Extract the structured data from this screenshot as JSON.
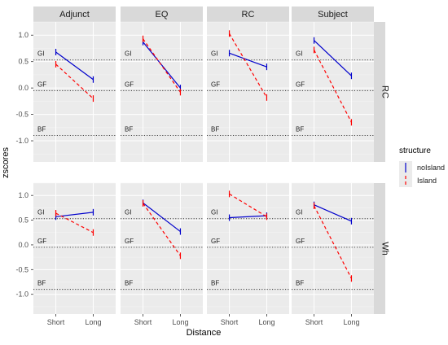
{
  "chart_data": {
    "type": "line",
    "xlabel": "Distance",
    "ylabel": "zscores",
    "categories": [
      "Short",
      "Long"
    ],
    "ylim": [
      -1.4,
      1.25
    ],
    "yticks": [
      -1.0,
      -0.5,
      0.0,
      0.5,
      1.0
    ],
    "ytick_labels": [
      "-1.0",
      "-0.5",
      "0.0",
      "0.5",
      "1.0"
    ],
    "grid": true,
    "facet_columns": [
      "Adjunct",
      "EQ",
      "RC",
      "Subject"
    ],
    "facet_rows": [
      "RC",
      "Wh"
    ],
    "reference_lines": [
      {
        "label": "GI",
        "value": 0.53
      },
      {
        "label": "GF",
        "value": -0.05
      },
      {
        "label": "BF",
        "value": -0.9
      }
    ],
    "legend": {
      "title": "structure",
      "position": "right",
      "entries": [
        {
          "label": "noIsland",
          "color": "#0000cc",
          "style": "solid"
        },
        {
          "label": "Island",
          "color": "#ff0000",
          "style": "dashed"
        }
      ]
    },
    "panels": [
      {
        "row": "RC",
        "col": "Adjunct",
        "series": [
          {
            "name": "noIsland",
            "values": [
              0.68,
              0.16
            ]
          },
          {
            "name": "Island",
            "values": [
              0.45,
              -0.2
            ]
          }
        ]
      },
      {
        "row": "RC",
        "col": "EQ",
        "series": [
          {
            "name": "noIsland",
            "values": [
              0.87,
              0.0
            ]
          },
          {
            "name": "Island",
            "values": [
              0.93,
              -0.08
            ]
          }
        ]
      },
      {
        "row": "RC",
        "col": "RC",
        "series": [
          {
            "name": "noIsland",
            "values": [
              0.66,
              0.4
            ]
          },
          {
            "name": "Island",
            "values": [
              1.03,
              -0.18
            ]
          }
        ]
      },
      {
        "row": "RC",
        "col": "Subject",
        "series": [
          {
            "name": "noIsland",
            "values": [
              0.9,
              0.23
            ]
          },
          {
            "name": "Island",
            "values": [
              0.72,
              -0.65
            ]
          }
        ]
      },
      {
        "row": "Wh",
        "col": "Adjunct",
        "series": [
          {
            "name": "noIsland",
            "values": [
              0.57,
              0.66
            ]
          },
          {
            "name": "Island",
            "values": [
              0.64,
              0.25
            ]
          }
        ]
      },
      {
        "row": "Wh",
        "col": "EQ",
        "series": [
          {
            "name": "noIsland",
            "values": [
              0.85,
              0.27
            ]
          },
          {
            "name": "Island",
            "values": [
              0.84,
              -0.22
            ]
          }
        ]
      },
      {
        "row": "Wh",
        "col": "RC",
        "series": [
          {
            "name": "noIsland",
            "values": [
              0.55,
              0.59
            ]
          },
          {
            "name": "Island",
            "values": [
              1.03,
              0.57
            ]
          }
        ]
      },
      {
        "row": "Wh",
        "col": "Subject",
        "series": [
          {
            "name": "noIsland",
            "values": [
              0.81,
              0.48
            ]
          },
          {
            "name": "Island",
            "values": [
              0.79,
              -0.68
            ]
          }
        ]
      }
    ]
  }
}
